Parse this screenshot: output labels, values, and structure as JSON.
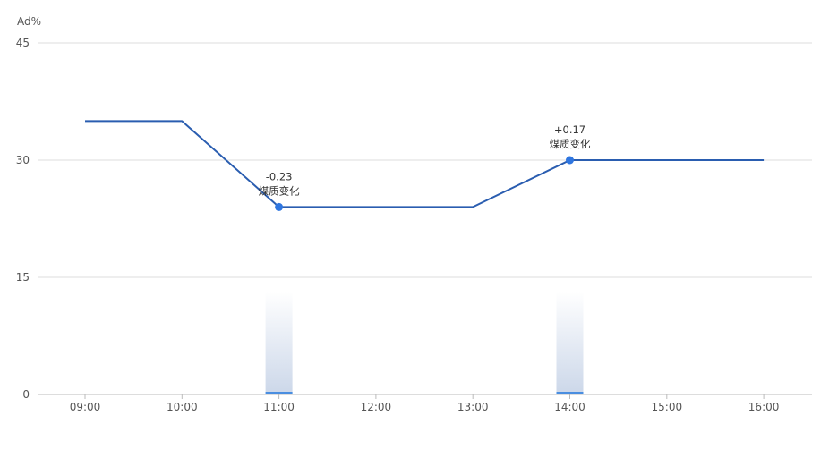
{
  "chart_data": {
    "type": "line",
    "y_unit_label": "Ad%",
    "x": [
      "09:00",
      "10:00",
      "11:00",
      "12:00",
      "13:00",
      "14:00",
      "15:00",
      "16:00"
    ],
    "y_ticks": [
      0,
      15,
      30,
      45
    ],
    "ylim": [
      0,
      45
    ],
    "grid": true,
    "series": [
      {
        "values": [
          35,
          35,
          24,
          24,
          24,
          30,
          30,
          30
        ],
        "color": "#2a5db0"
      }
    ],
    "markers": [
      {
        "x": "11:00",
        "y": 24,
        "color": "#2f76e0"
      },
      {
        "x": "14:00",
        "y": 30,
        "color": "#2f76e0"
      }
    ],
    "annotations": [
      {
        "x": "11:00",
        "y": 24,
        "value_text": "-0.23",
        "label_text": "煤质变化"
      },
      {
        "x": "14:00",
        "y": 30,
        "value_text": "+0.17",
        "label_text": "煤质变化"
      }
    ],
    "event_bands": [
      {
        "x": "11:00",
        "color": "#c9d5e8",
        "base_color": "#4a8ee0"
      },
      {
        "x": "14:00",
        "color": "#c9d5e8",
        "base_color": "#4a8ee0"
      }
    ],
    "colors": {
      "grid": "#dddddd",
      "axis": "#bbbbbb",
      "text": "#555555"
    }
  }
}
